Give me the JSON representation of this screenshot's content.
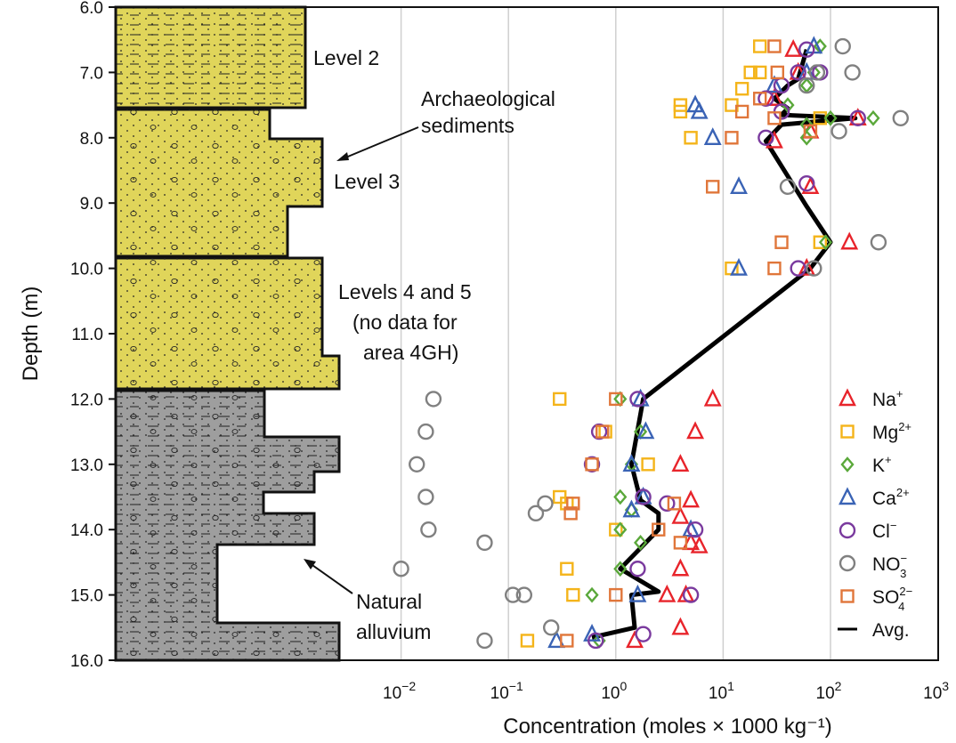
{
  "chart_data": {
    "type": "scatter",
    "xlabel": "Concentration (moles × 1000 kg⁻¹)",
    "ylabel": "Depth (m)",
    "x_scale": "log",
    "xlim": [
      0.001,
      1000
    ],
    "ylim": [
      16.0,
      6.0
    ],
    "y_ticks": [
      "6.0",
      "7.0",
      "8.0",
      "9.0",
      "10.0",
      "11.0",
      "12.0",
      "13.0",
      "14.0",
      "15.0",
      "16.0"
    ],
    "x_ticks": [
      {
        "base": "10",
        "exp": "−2",
        "value": 0.01
      },
      {
        "base": "10",
        "exp": "−1",
        "value": 0.1
      },
      {
        "base": "10",
        "exp": "0",
        "value": 1
      },
      {
        "base": "10",
        "exp": "1",
        "value": 10
      },
      {
        "base": "10",
        "exp": "2",
        "value": 100
      },
      {
        "base": "10",
        "exp": "3",
        "value": 1000
      }
    ],
    "grid": "vertical",
    "legend_position": "right",
    "stratigraphy": [
      {
        "top": 6.0,
        "bottom": 7.6,
        "unit": "sand",
        "color": "#e0d55a"
      },
      {
        "top": 7.6,
        "bottom": 9.85,
        "unit": "sand",
        "color": "#e0d55a"
      },
      {
        "top": 9.85,
        "bottom": 11.9,
        "unit": "sand",
        "color": "#e0d55a"
      },
      {
        "top": 11.9,
        "bottom": 16.0,
        "unit": "alluvium",
        "color": "#9e9e9e"
      }
    ],
    "annotations": {
      "level2": "Level 2",
      "archaeological": [
        "Archaeological",
        "sediments"
      ],
      "level3": "Level 3",
      "levels45": [
        "Levels 4 and 5",
        "(no data for",
        "area 4GH)"
      ],
      "natural": [
        "Natural",
        "alluvium"
      ]
    },
    "series": [
      {
        "name": "Na",
        "sup": "+",
        "marker": "triangle",
        "color": "#e8242b",
        "points": [
          [
            45,
            6.65
          ],
          [
            50,
            7.0
          ],
          [
            30,
            7.4
          ],
          [
            180,
            7.7
          ],
          [
            65,
            7.9
          ],
          [
            30,
            8.05
          ],
          [
            65,
            8.75
          ],
          [
            150,
            9.6
          ],
          [
            60,
            10.0
          ],
          [
            8,
            12.0
          ],
          [
            5.5,
            12.5
          ],
          [
            4,
            13.0
          ],
          [
            5,
            13.55
          ],
          [
            4,
            13.8
          ],
          [
            5,
            14.2
          ],
          [
            6,
            14.25
          ],
          [
            4,
            14.6
          ],
          [
            4.5,
            15.0
          ],
          [
            3,
            15.0
          ],
          [
            4,
            15.5
          ],
          [
            1.5,
            15.7
          ]
        ]
      },
      {
        "name": "Mg",
        "sup": "2+",
        "marker": "square",
        "color": "#f4b41a",
        "points": [
          [
            22,
            6.6
          ],
          [
            18,
            7.0
          ],
          [
            22,
            7.0
          ],
          [
            15,
            7.25
          ],
          [
            4,
            7.5
          ],
          [
            4,
            7.6
          ],
          [
            12,
            7.5
          ],
          [
            5,
            8.0
          ],
          [
            12,
            10.0
          ],
          [
            80,
            9.6
          ],
          [
            80,
            7.7
          ],
          [
            0.3,
            12.0
          ],
          [
            0.8,
            12.5
          ],
          [
            2,
            13.0
          ],
          [
            0.3,
            13.5
          ],
          [
            0.35,
            13.6
          ],
          [
            1,
            14.0
          ],
          [
            0.35,
            14.6
          ],
          [
            0.4,
            15.0
          ],
          [
            0.15,
            15.7
          ]
        ]
      },
      {
        "name": "K",
        "sup": "+",
        "marker": "diamond",
        "color": "#5aa83a",
        "points": [
          [
            80,
            6.6
          ],
          [
            70,
            7.0
          ],
          [
            60,
            7.2
          ],
          [
            40,
            7.5
          ],
          [
            60,
            7.8
          ],
          [
            100,
            7.7
          ],
          [
            250,
            7.7
          ],
          [
            60,
            8.0
          ],
          [
            90,
            9.6
          ],
          [
            1.1,
            12.0
          ],
          [
            1.7,
            12.5
          ],
          [
            1.4,
            13.0
          ],
          [
            1.1,
            13.5
          ],
          [
            1.4,
            13.7
          ],
          [
            1.1,
            14.0
          ],
          [
            1.7,
            14.2
          ],
          [
            1.1,
            14.6
          ],
          [
            0.6,
            15.0
          ],
          [
            0.7,
            15.7
          ]
        ]
      },
      {
        "name": "Ca",
        "sup": "2+",
        "marker": "triangle",
        "color": "#3a63b5",
        "points": [
          [
            70,
            6.6
          ],
          [
            60,
            7.0
          ],
          [
            30,
            7.2
          ],
          [
            5.5,
            7.5
          ],
          [
            6,
            7.6
          ],
          [
            8,
            8.0
          ],
          [
            14,
            8.75
          ],
          [
            14,
            10.0
          ],
          [
            1.7,
            12.0
          ],
          [
            1.9,
            12.5
          ],
          [
            1.4,
            13.0
          ],
          [
            1.8,
            13.5
          ],
          [
            1.4,
            13.7
          ],
          [
            5,
            14.0
          ],
          [
            1.6,
            15.0
          ],
          [
            0.6,
            15.6
          ],
          [
            0.28,
            15.7
          ]
        ]
      },
      {
        "name": "Cl",
        "sup": "−",
        "marker": "circle",
        "color": "#7a3a9e",
        "points": [
          [
            60,
            6.65
          ],
          [
            50,
            7.0
          ],
          [
            80,
            7.0
          ],
          [
            35,
            7.2
          ],
          [
            25,
            7.4
          ],
          [
            35,
            7.6
          ],
          [
            180,
            7.7
          ],
          [
            25,
            8.0
          ],
          [
            60,
            8.7
          ],
          [
            50,
            10.0
          ],
          [
            1.6,
            12.0
          ],
          [
            0.7,
            12.5
          ],
          [
            0.6,
            13.0
          ],
          [
            1.8,
            13.5
          ],
          [
            3,
            13.6
          ],
          [
            5.5,
            14.0
          ],
          [
            1.6,
            14.6
          ],
          [
            5,
            15.0
          ],
          [
            0.65,
            15.7
          ],
          [
            1.8,
            15.6
          ]
        ]
      },
      {
        "name": "NO",
        "sub": "3",
        "sup": "−",
        "marker": "circle",
        "color": "#808080",
        "points": [
          [
            130,
            6.6
          ],
          [
            75,
            7.0
          ],
          [
            160,
            7.0
          ],
          [
            60,
            7.2
          ],
          [
            450,
            7.7
          ],
          [
            120,
            7.9
          ],
          [
            40,
            8.75
          ],
          [
            280,
            9.6
          ],
          [
            70,
            10.0
          ],
          [
            0.02,
            12.0
          ],
          [
            0.017,
            12.5
          ],
          [
            0.014,
            13.0
          ],
          [
            0.017,
            13.5
          ],
          [
            0.22,
            13.6
          ],
          [
            0.18,
            13.75
          ],
          [
            0.018,
            14.0
          ],
          [
            0.06,
            14.2
          ],
          [
            0.01,
            14.6
          ],
          [
            0.14,
            15.0
          ],
          [
            0.11,
            15.0
          ],
          [
            0.25,
            15.5
          ],
          [
            0.06,
            15.7
          ]
        ]
      },
      {
        "name": "SO",
        "sub": "4",
        "sup": "2−",
        "marker": "square",
        "color": "#e0763a",
        "points": [
          [
            30,
            6.6
          ],
          [
            32,
            7.0
          ],
          [
            22,
            7.4
          ],
          [
            15,
            7.6
          ],
          [
            30,
            7.7
          ],
          [
            12,
            8.0
          ],
          [
            65,
            7.9
          ],
          [
            8,
            8.75
          ],
          [
            35,
            9.6
          ],
          [
            30,
            10.0
          ],
          [
            1.0,
            12.0
          ],
          [
            0.75,
            12.5
          ],
          [
            0.6,
            13.0
          ],
          [
            0.4,
            13.6
          ],
          [
            3.5,
            13.6
          ],
          [
            2.5,
            14.0
          ],
          [
            0.38,
            13.75
          ],
          [
            4,
            14.2
          ],
          [
            1.0,
            15.0
          ],
          [
            0.35,
            15.7
          ]
        ]
      }
    ],
    "average": {
      "name": "Avg.",
      "points": [
        [
          60,
          6.65
        ],
        [
          50,
          7.1
        ],
        [
          40,
          7.2
        ],
        [
          30,
          7.4
        ],
        [
          40,
          7.55
        ],
        [
          35,
          7.65
        ],
        [
          170,
          7.7
        ],
        [
          35,
          7.8
        ],
        [
          25,
          8.05
        ],
        [
          60,
          9.05
        ],
        [
          100,
          9.6
        ],
        [
          65,
          10.0
        ],
        [
          1.8,
          12.0
        ],
        [
          1.4,
          13.0
        ],
        [
          1.7,
          13.55
        ],
        [
          2.5,
          13.75
        ],
        [
          2.5,
          14.0
        ],
        [
          1.1,
          14.6
        ],
        [
          2.5,
          14.95
        ],
        [
          1.4,
          15.0
        ],
        [
          1.5,
          15.5
        ],
        [
          0.6,
          15.65
        ]
      ]
    }
  }
}
